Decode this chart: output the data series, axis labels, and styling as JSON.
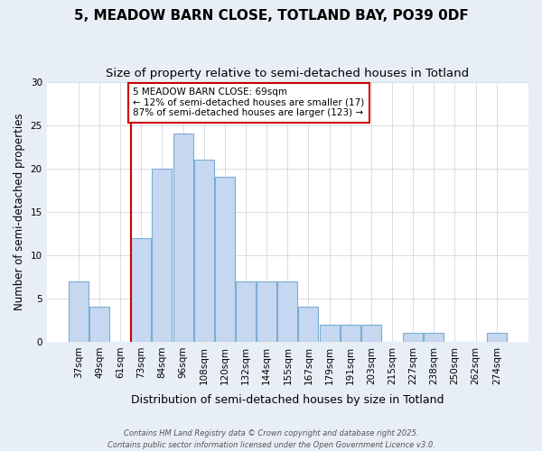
{
  "title_line1": "5, MEADOW BARN CLOSE, TOTLAND BAY, PO39 0DF",
  "title_line2": "Size of property relative to semi-detached houses in Totland",
  "xlabel": "Distribution of semi-detached houses by size in Totland",
  "ylabel": "Number of semi-detached properties",
  "categories": [
    "37sqm",
    "49sqm",
    "61sqm",
    "73sqm",
    "84sqm",
    "96sqm",
    "108sqm",
    "120sqm",
    "132sqm",
    "144sqm",
    "155sqm",
    "167sqm",
    "179sqm",
    "191sqm",
    "203sqm",
    "215sqm",
    "227sqm",
    "238sqm",
    "250sqm",
    "262sqm",
    "274sqm"
  ],
  "values": [
    7,
    4,
    0,
    12,
    20,
    24,
    21,
    19,
    7,
    7,
    7,
    4,
    2,
    2,
    2,
    0,
    1,
    1,
    0,
    0,
    1
  ],
  "bar_color": "#c5d8f0",
  "bar_edge_color": "#7aadd4",
  "ylim": [
    0,
    30
  ],
  "yticks": [
    0,
    5,
    10,
    15,
    20,
    25,
    30
  ],
  "vline_index": 3,
  "vline_color": "#cc0000",
  "annotation_text_line1": "5 MEADOW BARN CLOSE: 69sqm",
  "annotation_text_line2": "← 12% of semi-detached houses are smaller (17)",
  "annotation_text_line3": "87% of semi-detached houses are larger (123) →",
  "annotation_fontsize": 7.5,
  "title_fontsize1": 11,
  "title_fontsize2": 9.5,
  "xlabel_fontsize": 9,
  "ylabel_fontsize": 8.5,
  "tick_fontsize": 7.5,
  "footer_line1": "Contains HM Land Registry data © Crown copyright and database right 2025.",
  "footer_line2": "Contains public sector information licensed under the Open Government Licence v3.0.",
  "background_color": "#e8eef5",
  "plot_background_color": "#ffffff"
}
